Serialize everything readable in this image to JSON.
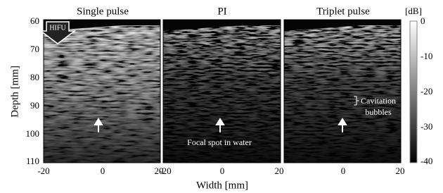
{
  "panels": [
    {
      "title": "Single pulse",
      "x_ticks": [
        "-20",
        "0",
        "20"
      ]
    },
    {
      "title": "PI",
      "x_ticks": [
        "-20",
        "0",
        "20"
      ],
      "annotation": "Focal spot in water"
    },
    {
      "title": "Triplet pulse",
      "x_ticks": [
        "0",
        "20"
      ],
      "annotation": [
        "Cavitation",
        "bubbles"
      ]
    }
  ],
  "hifu_label": "HIFU",
  "y_axis": {
    "label": "Depth [mm]",
    "ticks": [
      "60",
      "70",
      "80",
      "90",
      "100",
      "110"
    ]
  },
  "x_axis": {
    "label": "Width [mm]"
  },
  "colorbar": {
    "unit": "[dB]",
    "ticks": [
      "0",
      "-10",
      "-20",
      "-30",
      "-40"
    ]
  }
}
